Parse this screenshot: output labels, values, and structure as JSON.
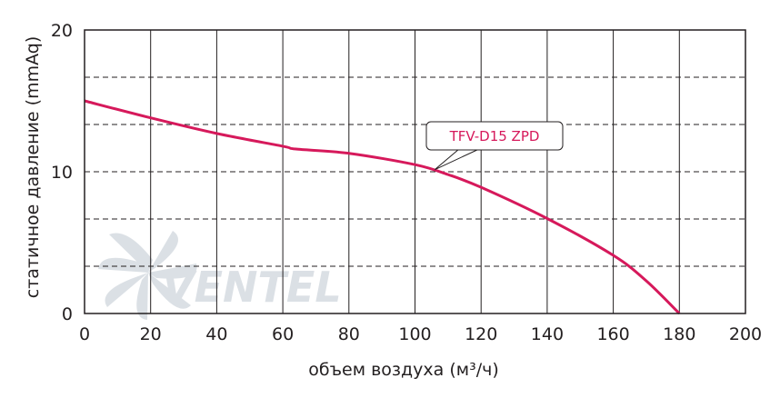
{
  "chart_data": {
    "type": "line",
    "xlabel": "объем воздуха (м³/ч)",
    "ylabel": "статичное давление (mmAq)",
    "xlim": [
      0,
      200
    ],
    "ylim": [
      0,
      20
    ],
    "x_ticks": [
      "0",
      "20",
      "40",
      "60",
      "80",
      "100",
      "120",
      "140",
      "160",
      "180",
      "200"
    ],
    "y_ticks": [
      "0",
      "10",
      "20"
    ],
    "grid": {
      "vertical_solid_at": [
        20,
        40,
        60,
        80,
        100,
        120,
        140,
        160,
        180
      ],
      "horizontal_dashed_at": [
        3.33,
        6.67,
        10,
        13.33,
        16.67
      ]
    },
    "series": [
      {
        "name": "TFV-D15 ZPD",
        "color": "#d6195b",
        "x": [
          0,
          20,
          40,
          60,
          64,
          80,
          100,
          110,
          120,
          140,
          160,
          170,
          180
        ],
        "y": [
          15.0,
          13.8,
          12.7,
          11.8,
          11.6,
          11.3,
          10.5,
          9.8,
          8.9,
          6.7,
          4.1,
          2.3,
          0
        ]
      }
    ],
    "watermark": "VENTEL"
  }
}
